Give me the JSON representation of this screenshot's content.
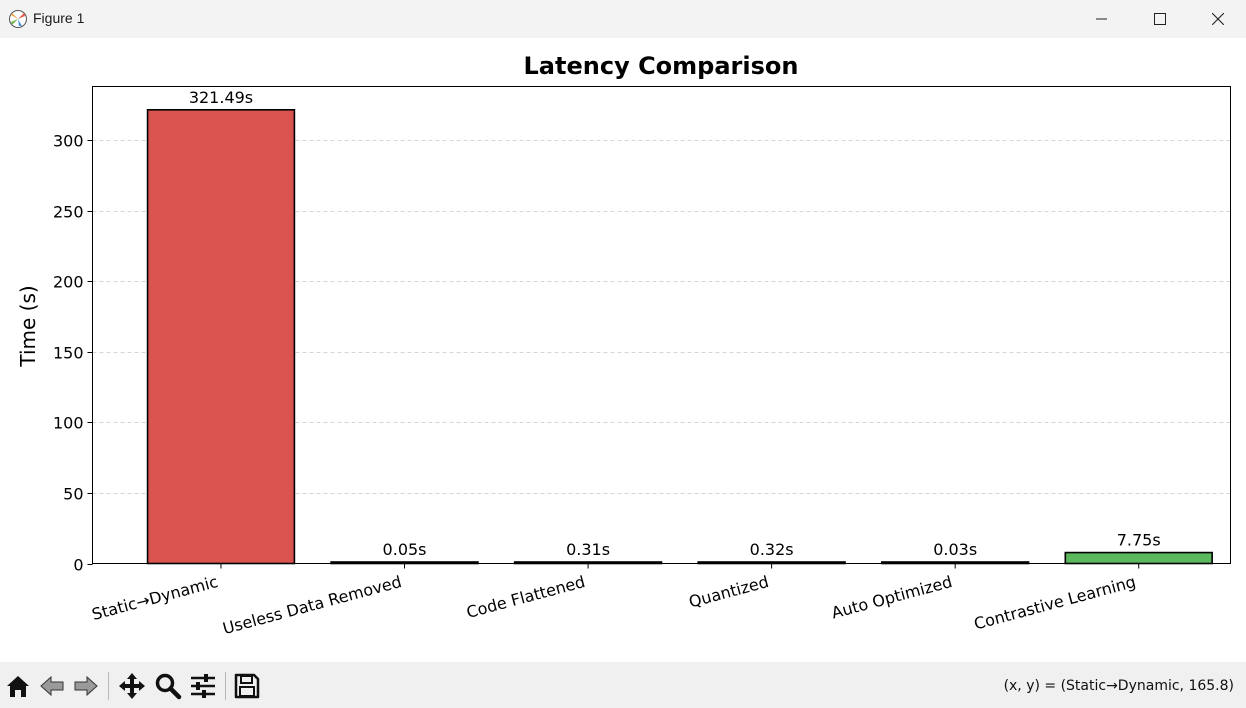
{
  "window": {
    "title": "Figure 1"
  },
  "toolbar": {
    "buttons": [
      "home-icon",
      "back-icon",
      "forward-icon",
      "pan-icon",
      "zoom-icon",
      "configure-subplots-icon",
      "save-icon"
    ],
    "coords": "(x, y) = (Static→Dynamic, 165.8)"
  },
  "chart_data": {
    "type": "bar",
    "title": "Latency Comparison",
    "xlabel": "",
    "ylabel": "Time (s)",
    "ylim": [
      0,
      338
    ],
    "yticks": [
      0,
      50,
      100,
      150,
      200,
      250,
      300
    ],
    "grid": "y-dashed",
    "categories": [
      "Static→Dynamic",
      "Useless Data Removed",
      "Code Flattened",
      "Quantized",
      "Auto Optimized",
      "Contrastive Learning"
    ],
    "values": [
      321.49,
      0.05,
      0.31,
      0.32,
      0.03,
      7.75
    ],
    "value_labels": [
      "321.49s",
      "0.05s",
      "0.31s",
      "0.32s",
      "0.03s",
      "7.75s"
    ],
    "colors": [
      "#d9534f",
      "#d9534f",
      "#d9534f",
      "#d9534f",
      "#d9534f",
      "#5cb85c"
    ],
    "edge_color": "#000000"
  }
}
